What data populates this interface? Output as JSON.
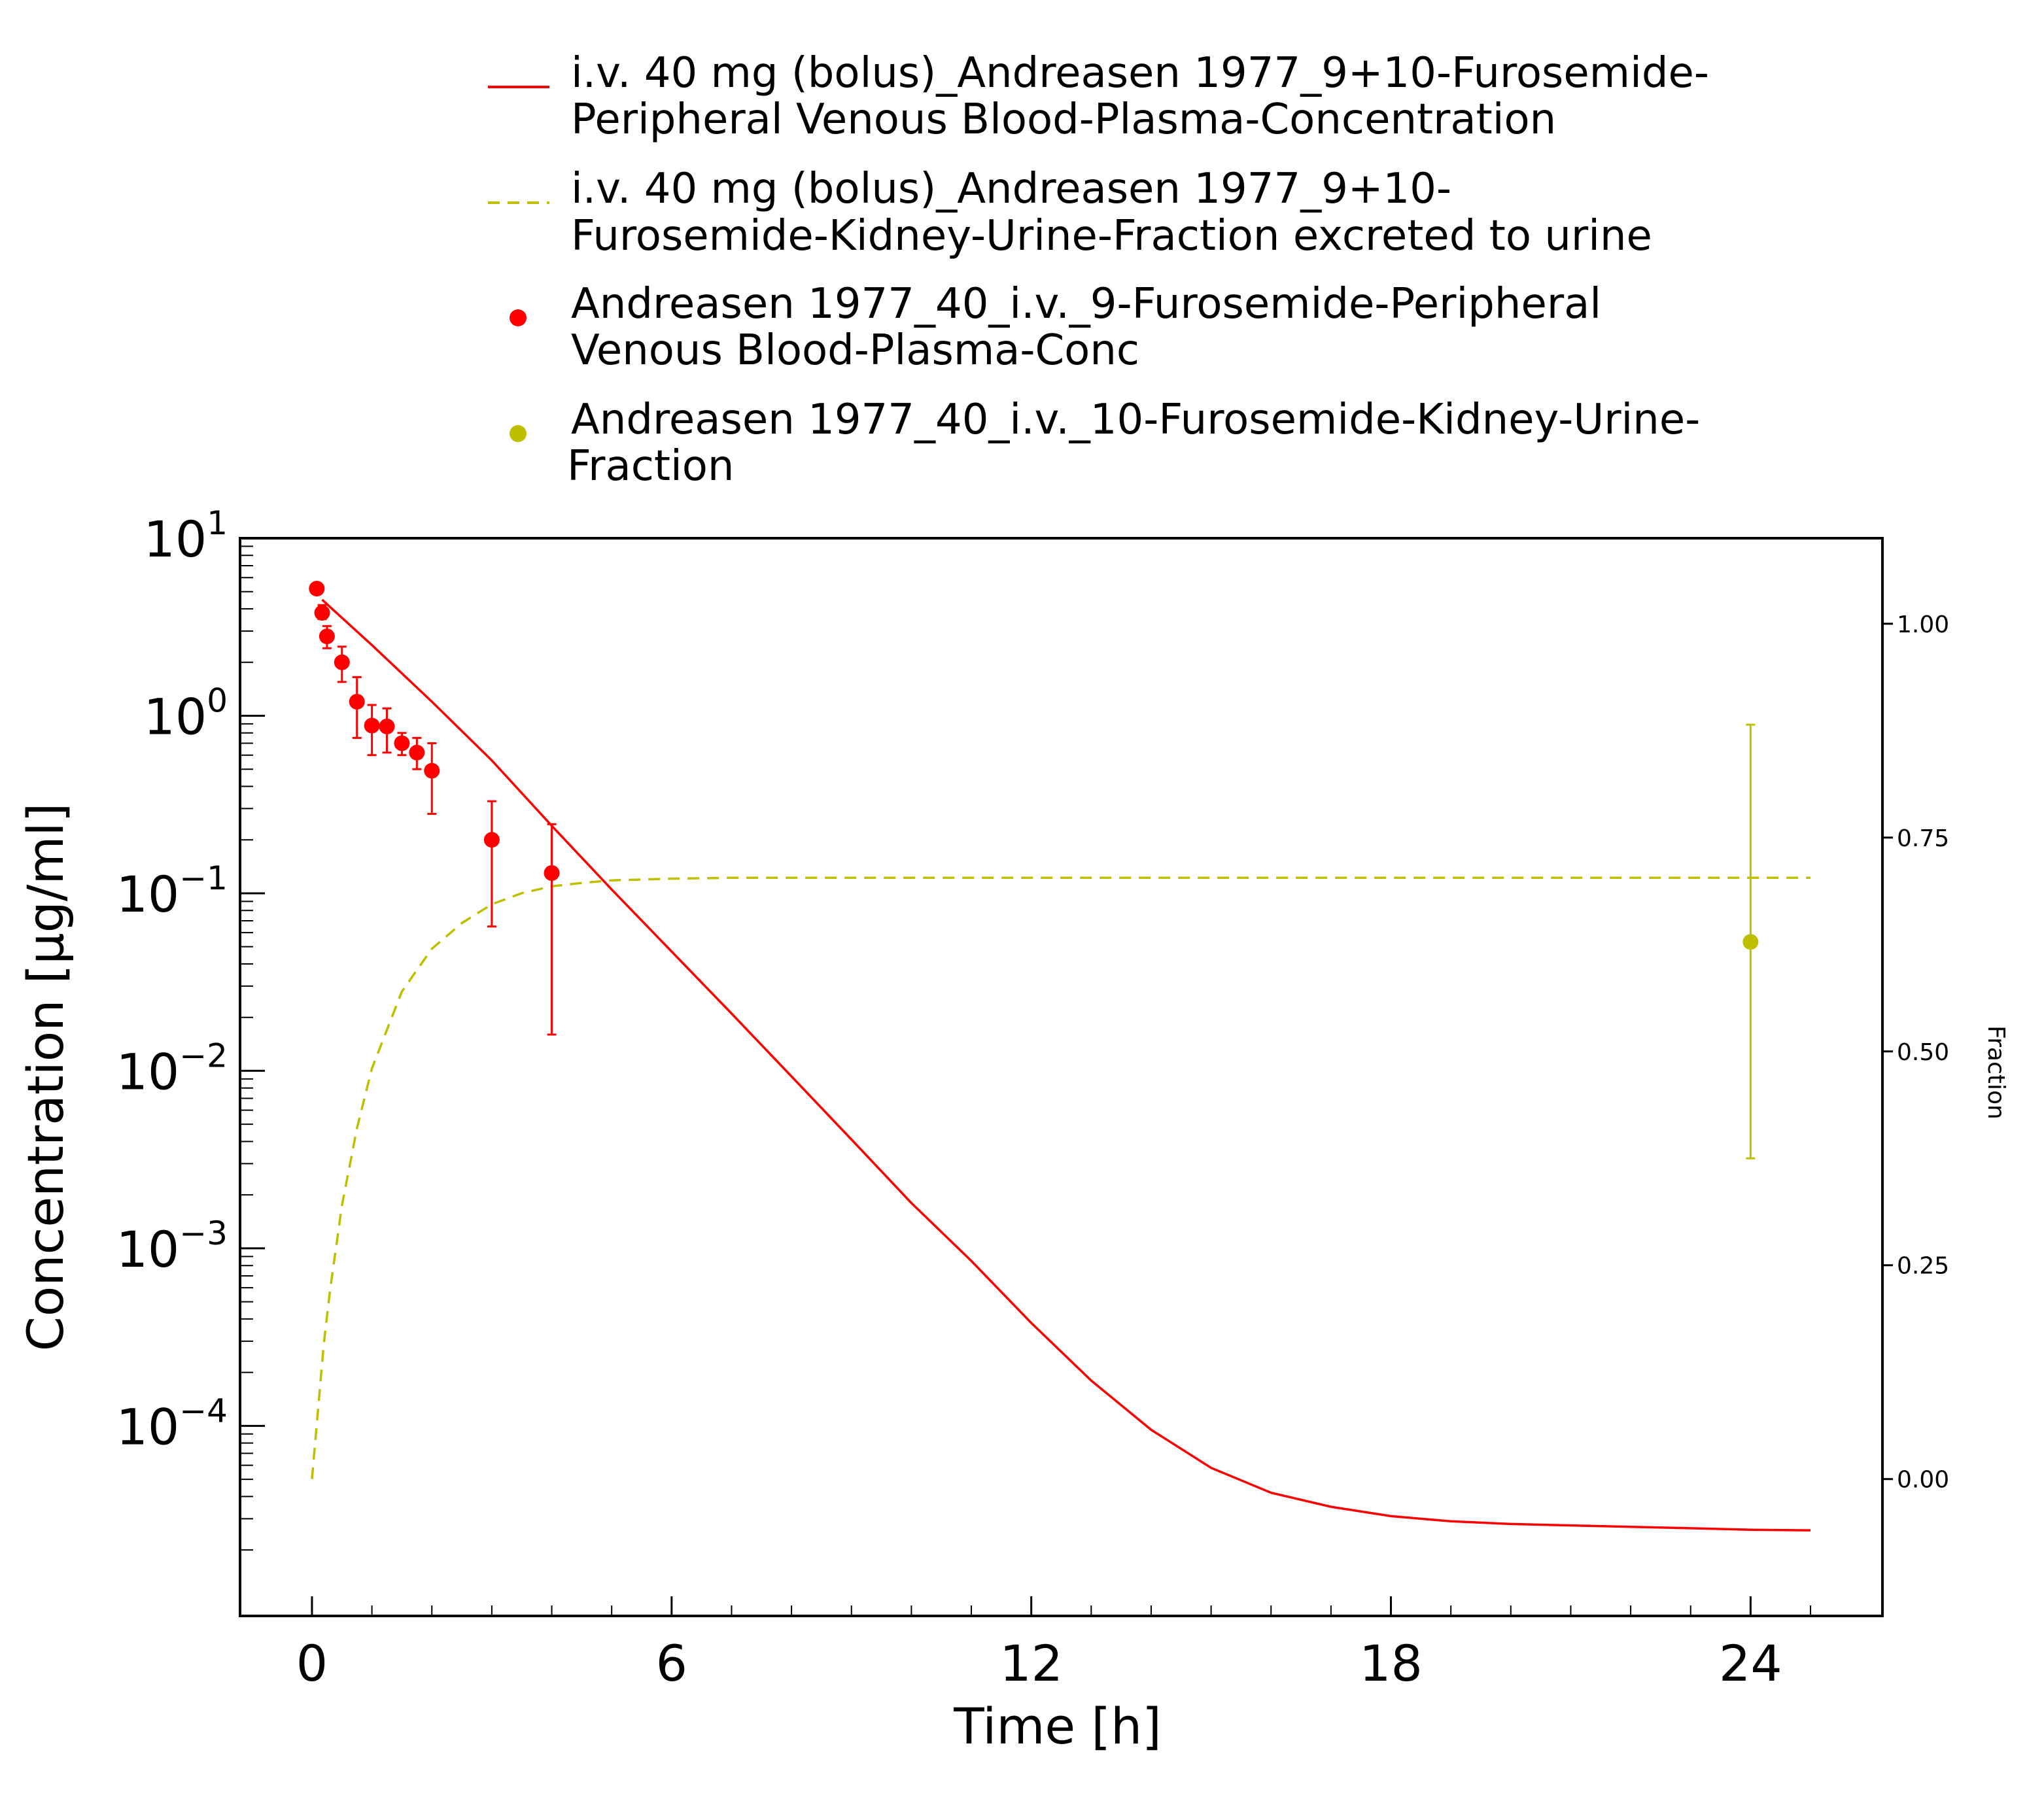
{
  "chart_data": {
    "type": "line",
    "title": "",
    "xlabel": "Time [h]",
    "ylabel": "Concentration [µg/ml]",
    "y2label": "Fraction",
    "xlim": [
      -1.2,
      26.2
    ],
    "ylim": [
      8.5e-06,
      10
    ],
    "y_scale": "log",
    "y2lim": [
      -0.16,
      1.1
    ],
    "x_ticks": [
      "0",
      "6",
      "12",
      "18",
      "24"
    ],
    "y_ticks": [
      {
        "base": "10",
        "exp": "1"
      },
      {
        "base": "10",
        "exp": "0"
      },
      {
        "base": "10",
        "exp": "−1"
      },
      {
        "base": "10",
        "exp": "−2"
      },
      {
        "base": "10",
        "exp": "−3"
      },
      {
        "base": "10",
        "exp": "−4"
      }
    ],
    "y2_ticks": [
      "0.00",
      "0.25",
      "0.50",
      "0.75",
      "1.00"
    ],
    "grid": false,
    "legend_position": "top",
    "series": [
      {
        "name": "i.v. 40 mg (bolus)_Andreasen 1977_9+10-Furosemide-Peripheral Venous Blood-Plasma-Concentration",
        "legend_lines": [
          "i.v. 40 mg (bolus)_Andreasen 1977_9+10-Furosemide-",
          "Peripheral Venous Blood-Plasma-Concentration"
        ],
        "kind": "line",
        "axis": "left",
        "color": "#ff0000",
        "dash": "solid",
        "x": [
          0.17,
          1,
          2,
          3,
          4,
          5,
          6,
          7,
          8,
          9,
          10,
          11,
          12,
          13,
          14,
          15,
          16,
          17,
          18,
          19,
          20,
          21,
          22,
          23,
          24,
          25
        ],
        "y": [
          4.5,
          2.5,
          1.2,
          0.56,
          0.24,
          0.105,
          0.047,
          0.021,
          0.0093,
          0.0041,
          0.0018,
          0.00085,
          0.00038,
          0.00018,
          9.5e-05,
          5.8e-05,
          4.2e-05,
          3.5e-05,
          3.1e-05,
          2.9e-05,
          2.8e-05,
          2.75e-05,
          2.7e-05,
          2.65e-05,
          2.6e-05,
          2.58e-05
        ]
      },
      {
        "name": "i.v. 40 mg (bolus)_Andreasen 1977_9+10-Furosemide-Kidney-Urine-Fraction excreted to urine",
        "legend_lines": [
          "i.v. 40 mg (bolus)_Andreasen 1977_9+10-",
          "Furosemide-Kidney-Urine-Fraction excreted to urine"
        ],
        "kind": "line",
        "axis": "right",
        "color": "#bfbf00",
        "dash": "dashed",
        "x": [
          0,
          0.1,
          0.2,
          0.3,
          0.5,
          0.75,
          1,
          1.5,
          2,
          2.5,
          3,
          3.5,
          4,
          4.5,
          5,
          6,
          7,
          8,
          10,
          12,
          15,
          18,
          21,
          24,
          25
        ],
        "y": [
          0.0,
          0.08,
          0.16,
          0.22,
          0.32,
          0.41,
          0.48,
          0.57,
          0.62,
          0.65,
          0.672,
          0.685,
          0.693,
          0.697,
          0.7,
          0.702,
          0.703,
          0.703,
          0.703,
          0.703,
          0.703,
          0.703,
          0.703,
          0.703,
          0.703
        ]
      },
      {
        "name": "Andreasen 1977_40_i.v._9-Furosemide-Peripheral Venous Blood-Plasma-Conc",
        "legend_lines": [
          "Andreasen 1977_40_i.v._9-Furosemide-Peripheral",
          "Venous Blood-Plasma-Conc"
        ],
        "kind": "scatter",
        "axis": "left",
        "color": "#ff0000",
        "points": [
          {
            "x": 0.08,
            "y": 5.2,
            "lo": 5.2,
            "hi": 5.2
          },
          {
            "x": 0.17,
            "y": 3.8,
            "lo": 3.5,
            "hi": 4.2
          },
          {
            "x": 0.25,
            "y": 2.8,
            "lo": 2.4,
            "hi": 3.2
          },
          {
            "x": 0.5,
            "y": 2.0,
            "lo": 1.55,
            "hi": 2.45
          },
          {
            "x": 0.75,
            "y": 1.2,
            "lo": 0.75,
            "hi": 1.65
          },
          {
            "x": 1.0,
            "y": 0.88,
            "lo": 0.6,
            "hi": 1.15
          },
          {
            "x": 1.25,
            "y": 0.87,
            "lo": 0.62,
            "hi": 1.1
          },
          {
            "x": 1.5,
            "y": 0.7,
            "lo": 0.6,
            "hi": 0.8
          },
          {
            "x": 1.75,
            "y": 0.62,
            "lo": 0.5,
            "hi": 0.75
          },
          {
            "x": 2.0,
            "y": 0.49,
            "lo": 0.28,
            "hi": 0.7
          },
          {
            "x": 3.0,
            "y": 0.2,
            "lo": 0.065,
            "hi": 0.33
          },
          {
            "x": 4.0,
            "y": 0.13,
            "lo": 0.016,
            "hi": 0.245
          }
        ]
      },
      {
        "name": "Andreasen 1977_40_i.v._10-Furosemide-Kidney-Urine-Fraction",
        "legend_lines": [
          "Andreasen 1977_40_i.v._10-Furosemide-Kidney-Urine-",
          "Fraction"
        ],
        "kind": "scatter",
        "axis": "right",
        "color": "#bfbf00",
        "points": [
          {
            "x": 24.0,
            "y": 0.628,
            "lo": 0.375,
            "hi": 0.882
          }
        ]
      }
    ]
  }
}
